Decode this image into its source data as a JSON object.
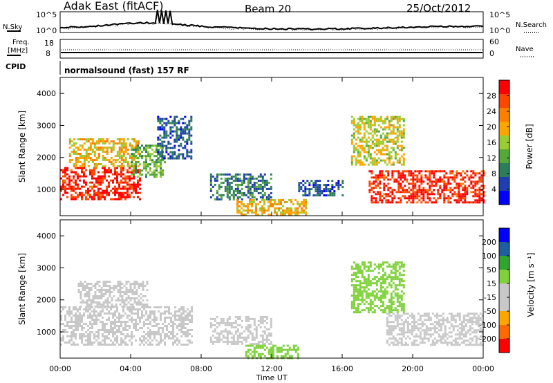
{
  "header": {
    "title": "Adak East (fitACF)",
    "beam": "Beam 20",
    "date": "25/Oct/2012"
  },
  "noise_panel": {
    "left_label": "N.Sky",
    "right_label": "N.Search",
    "left_ticks": [
      "10^5",
      "10^0"
    ],
    "right_ticks": [
      "10^5",
      "10^0"
    ]
  },
  "freq_panel": {
    "left_label_1": "Freq.",
    "left_label_2": "[MHz]",
    "right_label": "Nave",
    "left_ticks": [
      "18",
      "8"
    ],
    "right_ticks": [
      "60",
      "0"
    ]
  },
  "cpid": {
    "label": "CPID",
    "text": "normalsound (fast) 157 RF"
  },
  "colors": {
    "power_scale": [
      "#0000ff",
      "#1f3fb0",
      "#2e7d5a",
      "#55a83a",
      "#9acd32",
      "#ffa500",
      "#ff7f00",
      "#ff4500",
      "#ff0000"
    ],
    "velocity_scale": [
      "#ff0000",
      "#ff6a00",
      "#ffa500",
      "#c8c8c8",
      "#c8c8c8",
      "#7fd13b",
      "#2fa52f",
      "#1f5fa0",
      "#0000ff"
    ]
  },
  "chart_data": [
    {
      "type": "heatmap",
      "panel": "power",
      "ylabel": "Slant Range [km]",
      "xlabel": "Time UT",
      "x_ticks": [
        "00:00",
        "04:00",
        "08:00",
        "12:00",
        "16:00",
        "20:00",
        "00:00"
      ],
      "y_ticks": [
        1000,
        2000,
        3000,
        4000
      ],
      "xlim_hours": [
        0,
        24
      ],
      "ylim_km": [
        180,
        4500
      ],
      "colorbar": {
        "label": "Power [dB]",
        "ticks": [
          4,
          8,
          12,
          16,
          20,
          24,
          28
        ],
        "range": [
          0,
          30
        ]
      },
      "regions": [
        {
          "t0": 0.0,
          "t1": 4.5,
          "r0": 700,
          "r1": 1700,
          "value": 27
        },
        {
          "t0": 0.5,
          "t1": 4.5,
          "r0": 1700,
          "r1": 2600,
          "value": 18
        },
        {
          "t0": 4.0,
          "t1": 6.0,
          "r0": 1400,
          "r1": 2400,
          "value": 12
        },
        {
          "t0": 5.5,
          "t1": 7.5,
          "r0": 2000,
          "r1": 3300,
          "value": 6
        },
        {
          "t0": 8.5,
          "t1": 12.0,
          "r0": 700,
          "r1": 1500,
          "value": 8
        },
        {
          "t0": 10.0,
          "t1": 14.0,
          "r0": 200,
          "r1": 700,
          "value": 18
        },
        {
          "t0": 13.5,
          "t1": 16.0,
          "r0": 800,
          "r1": 1300,
          "value": 6
        },
        {
          "t0": 16.5,
          "t1": 19.5,
          "r0": 1800,
          "r1": 3300,
          "value": 16
        },
        {
          "t0": 17.5,
          "t1": 24.0,
          "r0": 600,
          "r1": 1600,
          "value": 27
        }
      ]
    },
    {
      "type": "heatmap",
      "panel": "velocity",
      "ylabel": "Slant Range [km]",
      "xlabel": "Time UT",
      "x_ticks": [
        "00:00",
        "04:00",
        "08:00",
        "12:00",
        "16:00",
        "20:00",
        "00:00"
      ],
      "y_ticks": [
        1000,
        2000,
        3000,
        4000
      ],
      "xlim_hours": [
        0,
        24
      ],
      "ylim_km": [
        180,
        4500
      ],
      "colorbar": {
        "label": "Velocity [m s⁻¹]",
        "ticks": [
          200,
          100,
          50,
          15,
          -15,
          -50,
          -100,
          -200
        ],
        "range": [
          -250,
          250
        ]
      },
      "regions": [
        {
          "t0": 0.0,
          "t1": 7.5,
          "r0": 600,
          "r1": 1800,
          "value": 0
        },
        {
          "t0": 1.0,
          "t1": 5.0,
          "r0": 1800,
          "r1": 2600,
          "value": -30
        },
        {
          "t0": 8.5,
          "t1": 12.0,
          "r0": 600,
          "r1": 1500,
          "value": 0
        },
        {
          "t0": 10.5,
          "t1": 13.5,
          "r0": 200,
          "r1": 600,
          "value": 60
        },
        {
          "t0": 16.5,
          "t1": 19.5,
          "r0": 1600,
          "r1": 3200,
          "value": 60
        },
        {
          "t0": 18.5,
          "t1": 24.0,
          "r0": 600,
          "r1": 1600,
          "value": 0
        }
      ]
    }
  ]
}
